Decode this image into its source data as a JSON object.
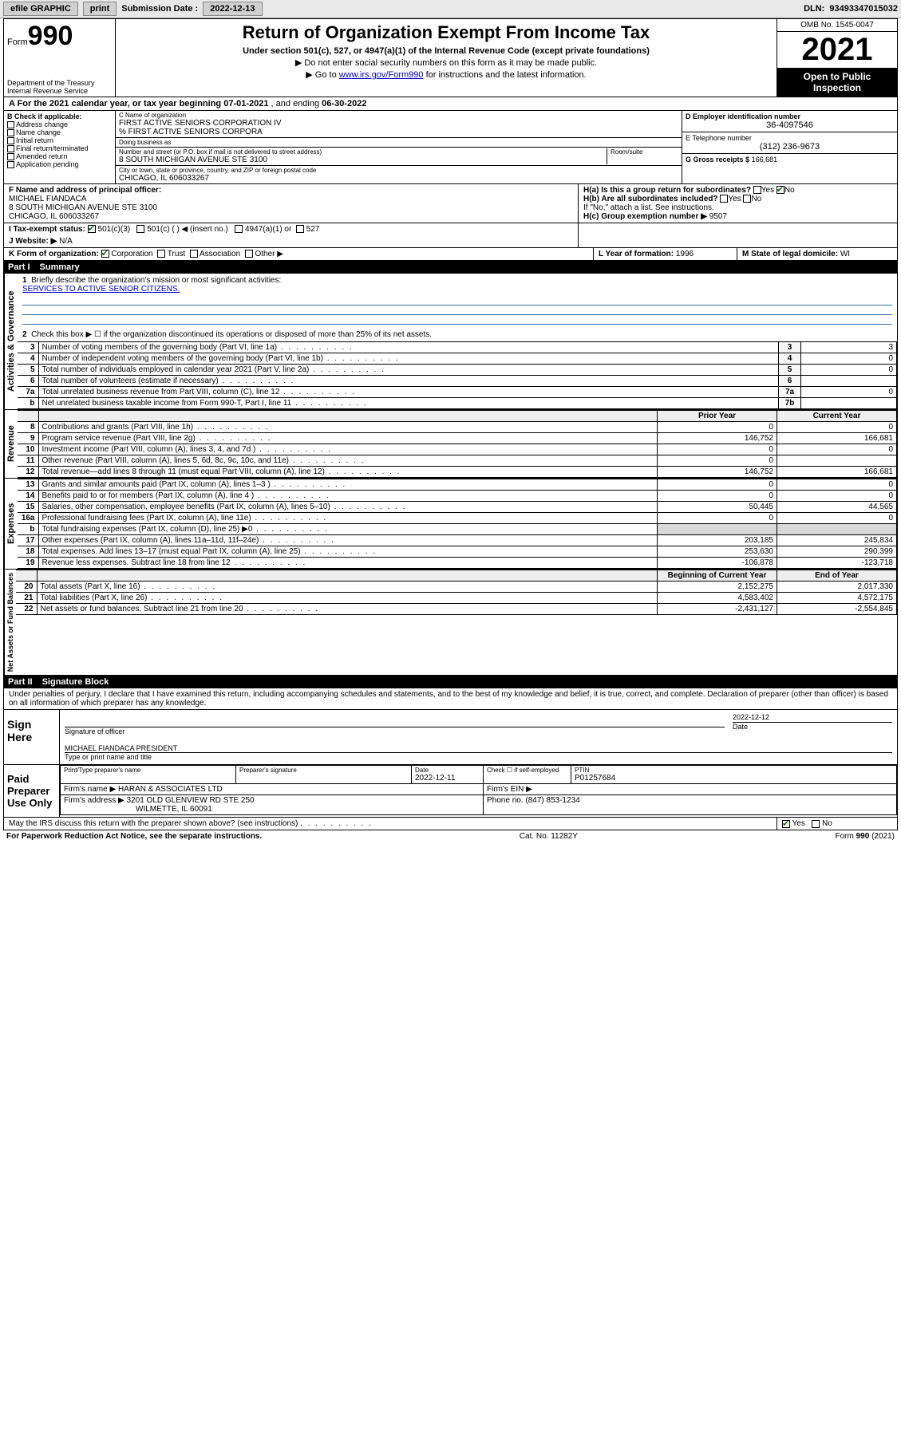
{
  "toolbar": {
    "efile": "efile GRAPHIC",
    "print": "print",
    "subdate_label": "Submission Date :",
    "subdate": "2022-12-13",
    "dln_label": "DLN:",
    "dln": "93493347015032"
  },
  "header": {
    "form_word": "Form",
    "form_no": "990",
    "dept": "Department of the Treasury",
    "irs": "Internal Revenue Service",
    "title": "Return of Organization Exempt From Income Tax",
    "sub": "Under section 501(c), 527, or 4947(a)(1) of the Internal Revenue Code (except private foundations)",
    "note1": "▶ Do not enter social security numbers on this form as it may be made public.",
    "note2_pre": "▶ Go to ",
    "note2_link": "www.irs.gov/Form990",
    "note2_post": " for instructions and the latest information.",
    "omb": "OMB No. 1545-0047",
    "year": "2021",
    "open": "Open to Public Inspection"
  },
  "lineA": {
    "text_pre": "A For the 2021 calendar year, or tax year beginning ",
    "begin": "07-01-2021",
    "mid": " , and ending ",
    "end": "06-30-2022"
  },
  "boxB": {
    "label": "B Check if applicable:",
    "items": [
      "Address change",
      "Name change",
      "Initial return",
      "Final return/terminated",
      "Amended return",
      "Application pending"
    ]
  },
  "boxC": {
    "name_label": "C Name of organization",
    "name": "FIRST ACTIVE SENIORS CORPORATION IV",
    "care_of": "% FIRST ACTIVE SENIORS CORPORA",
    "dba_label": "Doing business as",
    "dba": "",
    "street_label": "Number and street (or P.O. box if mail is not delivered to street address)",
    "room_label": "Room/suite",
    "street": "8 SOUTH MICHIGAN AVENUE STE 3100",
    "city_label": "City or town, state or province, country, and ZIP or foreign postal code",
    "city": "CHICAGO, IL  606033267"
  },
  "boxD": {
    "label": "D Employer identification number",
    "ein": "36-4097546"
  },
  "boxE": {
    "label": "E Telephone number",
    "phone": "(312) 236-9673"
  },
  "boxG": {
    "label": "G Gross receipts $",
    "amount": "166,681"
  },
  "boxF": {
    "label": "F Name and address of principal officer:",
    "name": "MICHAEL FIANDACA",
    "addr1": "8 SOUTH MICHIGAN AVENUE STE 3100",
    "addr2": "CHICAGO, IL  606033267"
  },
  "boxH": {
    "a": "H(a)  Is this a group return for subordinates?",
    "a_yes": "Yes",
    "a_no": "No",
    "b": "H(b)  Are all subordinates included?",
    "b_yes": "Yes",
    "b_no": "No",
    "b_note": "If \"No,\" attach a list. See instructions.",
    "c": "H(c)  Group exemption number ▶",
    "c_val": "9507"
  },
  "lineI": {
    "label": "I   Tax-exempt status:",
    "o1": "501(c)(3)",
    "o2": "501(c) (  ) ◀ (insert no.)",
    "o3": "4947(a)(1) or",
    "o4": "527"
  },
  "lineJ": {
    "label": "J   Website: ▶",
    "val": "N/A"
  },
  "lineK": {
    "label": "K Form of organization:",
    "o1": "Corporation",
    "o2": "Trust",
    "o3": "Association",
    "o4": "Other ▶"
  },
  "lineL": {
    "label": "L Year of formation:",
    "val": "1996"
  },
  "lineM": {
    "label": "M State of legal domicile:",
    "val": "WI"
  },
  "part1": {
    "bar": "Part I",
    "title": "Summary",
    "vlabel_gov": "Activities & Governance",
    "vlabel_rev": "Revenue",
    "vlabel_exp": "Expenses",
    "vlabel_net": "Net Assets or Fund Balances",
    "l1": "Briefly describe the organization's mission or most significant activities:",
    "mission": "SERVICES TO ACTIVE SENIOR CITIZENS.",
    "l2": "Check this box ▶ ☐  if the organization discontinued its operations or disposed of more than 25% of its net assets.",
    "rows_gov": [
      {
        "n": "3",
        "d": "Number of voting members of the governing body (Part VI, line 1a)",
        "box": "3",
        "v": "3"
      },
      {
        "n": "4",
        "d": "Number of independent voting members of the governing body (Part VI, line 1b)",
        "box": "4",
        "v": "0"
      },
      {
        "n": "5",
        "d": "Total number of individuals employed in calendar year 2021 (Part V, line 2a)",
        "box": "5",
        "v": "0"
      },
      {
        "n": "6",
        "d": "Total number of volunteers (estimate if necessary)",
        "box": "6",
        "v": ""
      },
      {
        "n": "7a",
        "d": "Total unrelated business revenue from Part VIII, column (C), line 12",
        "box": "7a",
        "v": "0"
      },
      {
        "n": "b",
        "d": "Net unrelated business taxable income from Form 990-T, Part I, line 11",
        "box": "7b",
        "v": ""
      }
    ],
    "col_prior": "Prior Year",
    "col_curr": "Current Year",
    "rows_rev": [
      {
        "n": "8",
        "d": "Contributions and grants (Part VIII, line 1h)",
        "p": "0",
        "c": "0"
      },
      {
        "n": "9",
        "d": "Program service revenue (Part VIII, line 2g)",
        "p": "146,752",
        "c": "166,681"
      },
      {
        "n": "10",
        "d": "Investment income (Part VIII, column (A), lines 3, 4, and 7d )",
        "p": "0",
        "c": "0"
      },
      {
        "n": "11",
        "d": "Other revenue (Part VIII, column (A), lines 5, 6d, 8c, 9c, 10c, and 11e)",
        "p": "0",
        "c": ""
      },
      {
        "n": "12",
        "d": "Total revenue—add lines 8 through 11 (must equal Part VIII, column (A), line 12)",
        "p": "146,752",
        "c": "166,681"
      }
    ],
    "rows_exp": [
      {
        "n": "13",
        "d": "Grants and similar amounts paid (Part IX, column (A), lines 1–3 )",
        "p": "0",
        "c": "0"
      },
      {
        "n": "14",
        "d": "Benefits paid to or for members (Part IX, column (A), line 4 )",
        "p": "0",
        "c": "0"
      },
      {
        "n": "15",
        "d": "Salaries, other compensation, employee benefits (Part IX, column (A), lines 5–10)",
        "p": "50,445",
        "c": "44,565"
      },
      {
        "n": "16a",
        "d": "Professional fundraising fees (Part IX, column (A), line 11e)",
        "p": "0",
        "c": "0"
      },
      {
        "n": "b",
        "d": "Total fundraising expenses (Part IX, column (D), line 25) ▶0",
        "p": "",
        "c": ""
      },
      {
        "n": "17",
        "d": "Other expenses (Part IX, column (A), lines 11a–11d, 11f–24e)",
        "p": "203,185",
        "c": "245,834"
      },
      {
        "n": "18",
        "d": "Total expenses. Add lines 13–17 (must equal Part IX, column (A), line 25)",
        "p": "253,630",
        "c": "290,399"
      },
      {
        "n": "19",
        "d": "Revenue less expenses. Subtract line 18 from line 12",
        "p": "-106,878",
        "c": "-123,718"
      }
    ],
    "col_begin": "Beginning of Current Year",
    "col_end": "End of Year",
    "rows_net": [
      {
        "n": "20",
        "d": "Total assets (Part X, line 16)",
        "p": "2,152,275",
        "c": "2,017,330"
      },
      {
        "n": "21",
        "d": "Total liabilities (Part X, line 26)",
        "p": "4,583,402",
        "c": "4,572,175"
      },
      {
        "n": "22",
        "d": "Net assets or fund balances. Subtract line 21 from line 20",
        "p": "-2,431,127",
        "c": "-2,554,845"
      }
    ]
  },
  "part2": {
    "bar": "Part II",
    "title": "Signature Block",
    "decl": "Under penalties of perjury, I declare that I have examined this return, including accompanying schedules and statements, and to the best of my knowledge and belief, it is true, correct, and complete. Declaration of preparer (other than officer) is based on all information of which preparer has any knowledge.",
    "sign_here": "Sign Here",
    "sig_officer": "Signature of officer",
    "sig_date": "Date",
    "sig_date_val": "2022-12-12",
    "officer_name": "MICHAEL FIANDACA  PRESIDENT",
    "type_name": "Type or print name and title",
    "paid_label": "Paid Preparer Use Only",
    "h_print": "Print/Type preparer's name",
    "h_sig": "Preparer's signature",
    "h_date": "Date",
    "h_date_val": "2022-12-11",
    "h_check": "Check ☐ if self-employed",
    "h_ptin": "PTIN",
    "ptin": "P01257684",
    "firm_name_l": "Firm's name    ▶",
    "firm_name": "HARAN & ASSOCIATES LTD",
    "firm_ein_l": "Firm's EIN ▶",
    "firm_addr_l": "Firm's address ▶",
    "firm_addr1": "3201 OLD GLENVIEW RD STE 250",
    "firm_addr2": "WILMETTE, IL  60091",
    "firm_phone_l": "Phone no.",
    "firm_phone": "(847) 853-1234",
    "discuss": "May the IRS discuss this return with the preparer shown above? (see instructions)",
    "discuss_yes": "Yes",
    "discuss_no": "No"
  },
  "footer": {
    "left": "For Paperwork Reduction Act Notice, see the separate instructions.",
    "mid": "Cat. No. 11282Y",
    "right": "Form 990 (2021)"
  }
}
